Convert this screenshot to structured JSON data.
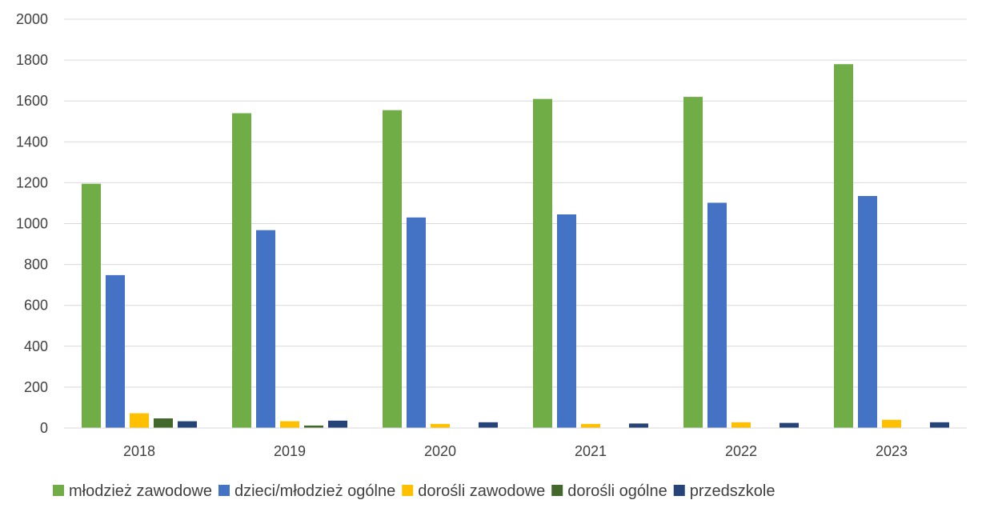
{
  "chart_data": {
    "type": "bar",
    "title": "",
    "xlabel": "",
    "ylabel": "",
    "categories": [
      "2018",
      "2019",
      "2020",
      "2021",
      "2022",
      "2023"
    ],
    "ylim": [
      0,
      2000
    ],
    "yticks": [
      0,
      200,
      400,
      600,
      800,
      1000,
      1200,
      1400,
      1600,
      1800,
      2000
    ],
    "grid": true,
    "legend_position": "bottom",
    "series": [
      {
        "name": "młodzież zawodowe",
        "color": "#70ad47",
        "values": [
          1195,
          1540,
          1555,
          1610,
          1620,
          1780
        ]
      },
      {
        "name": "dzieci/młodzież ogólne",
        "color": "#4472c4",
        "values": [
          748,
          968,
          1030,
          1045,
          1102,
          1135
        ]
      },
      {
        "name": "dorośli zawodowe",
        "color": "#ffc000",
        "values": [
          72,
          33,
          20,
          20,
          28,
          40
        ]
      },
      {
        "name": "dorośli ogólne",
        "color": "#43682b",
        "values": [
          47,
          12,
          0,
          0,
          0,
          0
        ]
      },
      {
        "name": "przedszkole",
        "color": "#264478",
        "values": [
          33,
          36,
          28,
          22,
          25,
          28
        ]
      }
    ]
  }
}
